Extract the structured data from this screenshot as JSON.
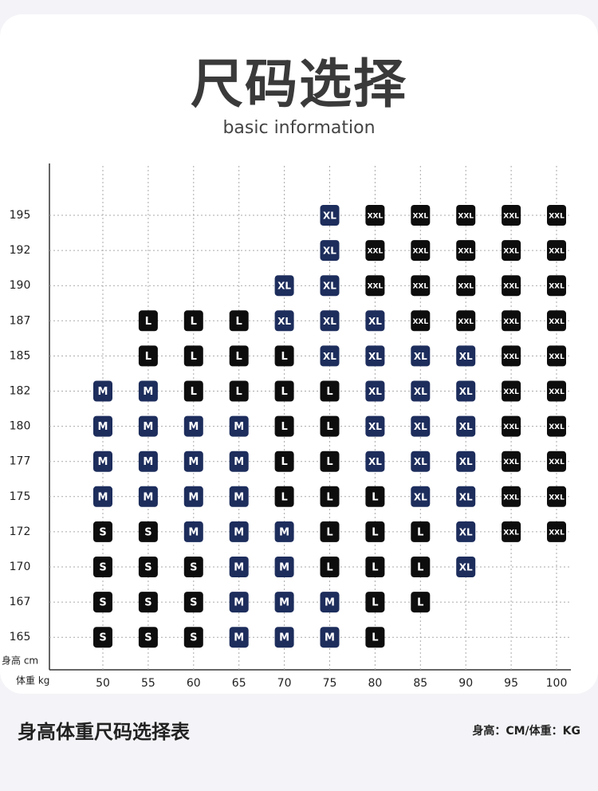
{
  "header": {
    "title": "尺码选择",
    "subtitle": "basic information"
  },
  "grid": {
    "y_label": "身高 cm",
    "x_label": "体重 kg",
    "weights": [
      50,
      55,
      60,
      65,
      70,
      75,
      80,
      85,
      90,
      95,
      100
    ],
    "heights": [
      195,
      192,
      190,
      187,
      185,
      182,
      180,
      177,
      175,
      172,
      170,
      167,
      165
    ],
    "rows": [
      [
        null,
        null,
        null,
        null,
        null,
        "XL",
        "XXL",
        "XXL",
        "XXL",
        "XXL",
        "XXL"
      ],
      [
        null,
        null,
        null,
        null,
        null,
        "XL",
        "XXL",
        "XXL",
        "XXL",
        "XXL",
        "XXL"
      ],
      [
        null,
        null,
        null,
        null,
        "XL",
        "XL",
        "XXL",
        "XXL",
        "XXL",
        "XXL",
        "XXL"
      ],
      [
        null,
        "L",
        "L",
        "L",
        "XL",
        "XL",
        "XL",
        "XXL",
        "XXL",
        "XXL",
        "XXL"
      ],
      [
        null,
        "L",
        "L",
        "L",
        "L",
        "XL",
        "XL",
        "XL",
        "XL",
        "XXL",
        "XXL"
      ],
      [
        "M",
        "M",
        "L",
        "L",
        "L",
        "L",
        "XL",
        "XL",
        "XL",
        "XXL",
        "XXL"
      ],
      [
        "M",
        "M",
        "M",
        "M",
        "L",
        "L",
        "XL",
        "XL",
        "XL",
        "XXL",
        "XXL"
      ],
      [
        "M",
        "M",
        "M",
        "M",
        "L",
        "L",
        "XL",
        "XL",
        "XL",
        "XXL",
        "XXL"
      ],
      [
        "M",
        "M",
        "M",
        "M",
        "L",
        "L",
        "L",
        "XL",
        "XL",
        "XXL",
        "XXL"
      ],
      [
        "S",
        "S",
        "M",
        "M",
        "M",
        "L",
        "L",
        "L",
        "XL",
        "XXL",
        "XXL"
      ],
      [
        "S",
        "S",
        "S",
        "M",
        "M",
        "L",
        "L",
        "L",
        "XL",
        null,
        null
      ],
      [
        "S",
        "S",
        "S",
        "M",
        "M",
        "M",
        "L",
        "L",
        null,
        null,
        null
      ],
      [
        "S",
        "S",
        "S",
        "M",
        "M",
        "M",
        "L",
        null,
        null,
        null,
        null
      ]
    ]
  },
  "footer": {
    "caption": "身高体重尺码选择表",
    "units": "身高：CM/体重：KG"
  }
}
